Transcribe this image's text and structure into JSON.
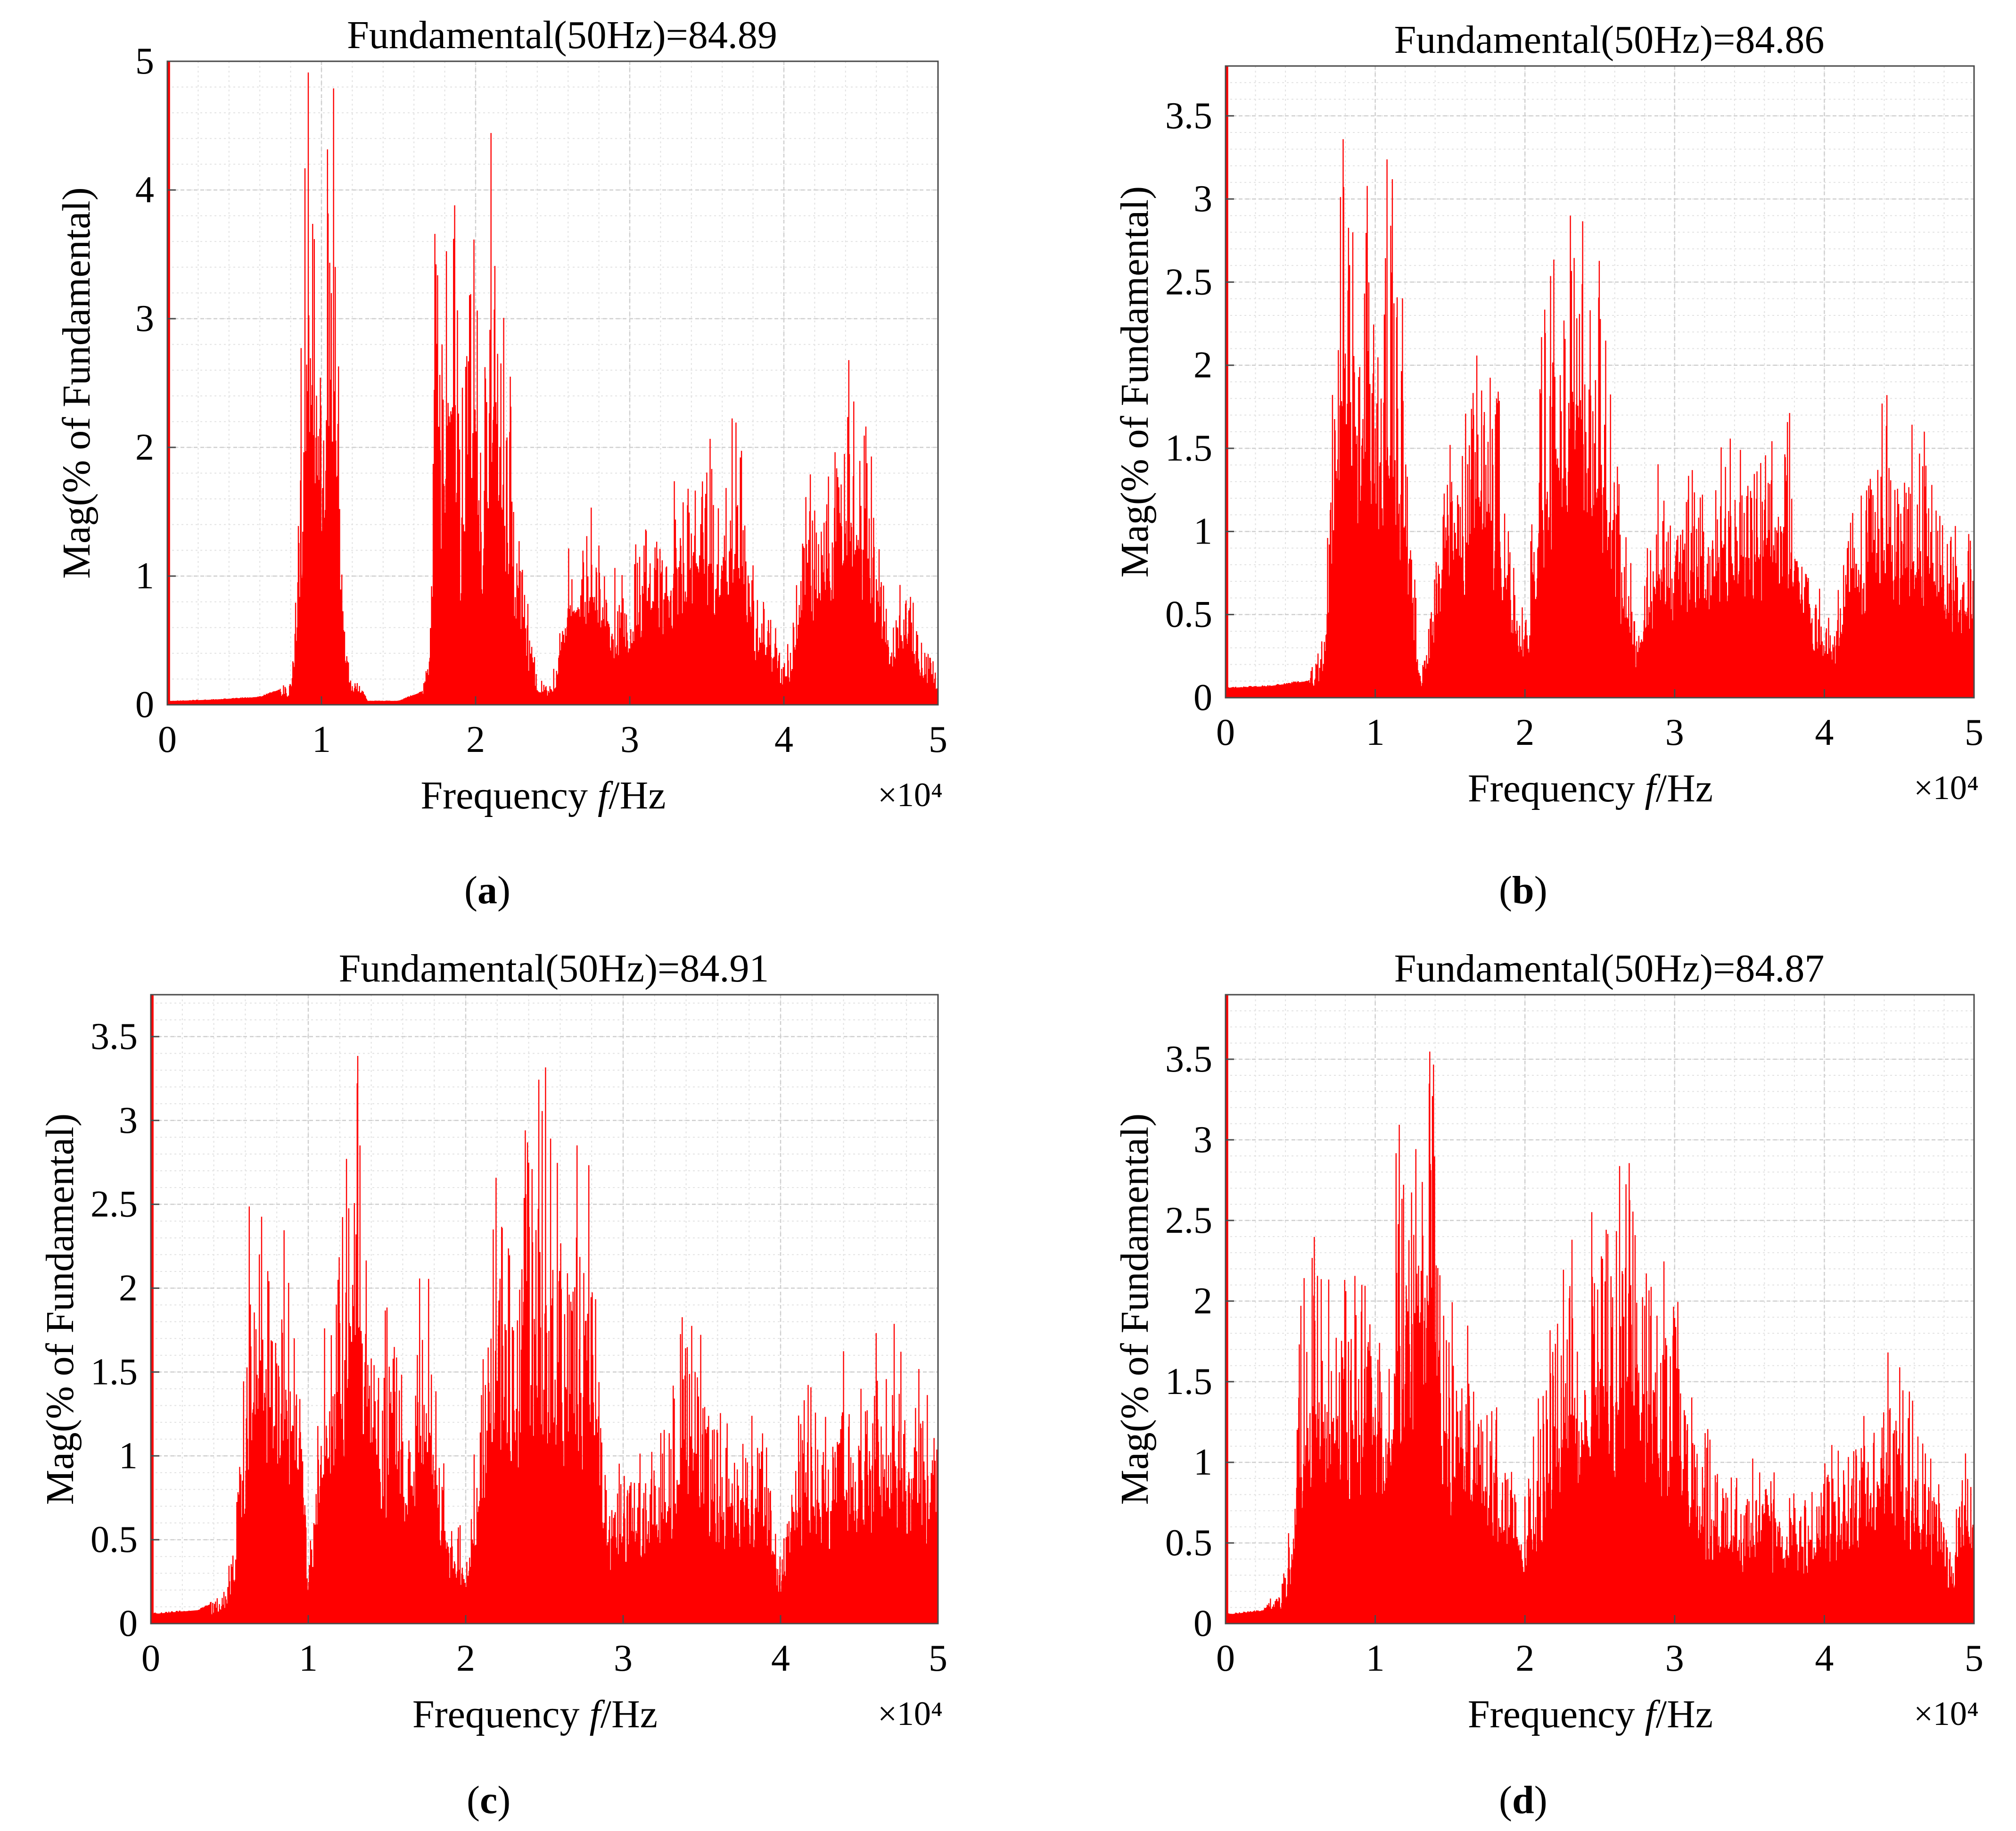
{
  "chart_data": [
    {
      "type": "area",
      "panel": "a",
      "title": "Fundamental(50Hz)=84.89",
      "xlabel": "Frequency f/Hz",
      "ylabel": "Mag(% of Fundamental)",
      "x_multiplier": "×10⁴",
      "xlim": [
        0,
        5
      ],
      "ylim": [
        0,
        5
      ],
      "xticks": [
        "0",
        "1",
        "2",
        "3",
        "4",
        "5"
      ],
      "yticks": [
        "0",
        "1",
        "2",
        "3",
        "4",
        "5"
      ],
      "grid": true,
      "color": "#ff0000",
      "series": [
        {
          "name": "spectrum",
          "x": [
            0.0,
            0.05,
            0.3,
            0.6,
            0.8,
            0.84,
            0.88,
            0.92,
            0.96,
            1.0,
            1.04,
            1.08,
            1.12,
            1.18,
            1.3,
            1.5,
            1.65,
            1.7,
            1.74,
            1.78,
            1.82,
            1.86,
            1.9,
            1.95,
            2.0,
            2.05,
            2.1,
            2.15,
            2.2,
            2.25,
            2.3,
            2.35,
            2.42,
            2.5,
            2.55,
            2.6,
            2.7,
            2.8,
            2.9,
            3.0,
            3.1,
            3.2,
            3.3,
            3.4,
            3.5,
            3.6,
            3.7,
            3.8,
            3.9,
            4.0,
            4.05,
            4.1,
            4.2,
            4.3,
            4.4,
            4.5,
            4.6,
            4.7,
            4.8,
            4.9,
            5.0
          ],
          "y": [
            0.03,
            0.03,
            0.04,
            0.06,
            0.15,
            0.9,
            2.8,
            4.5,
            4.3,
            2.2,
            3.5,
            4.1,
            1.5,
            0.3,
            0.03,
            0.03,
            0.1,
            0.5,
            3.4,
            2.2,
            3.9,
            3.7,
            1.9,
            3.4,
            3.3,
            1.7,
            3.7,
            3.2,
            2.5,
            1.6,
            1.2,
            0.5,
            0.15,
            0.2,
            0.5,
            1.2,
            1.3,
            1.2,
            0.9,
            0.8,
            1.5,
            1.1,
            1.6,
            1.7,
            1.8,
            1.7,
            1.9,
            0.9,
            0.7,
            0.3,
            0.5,
            1.2,
            1.6,
            1.8,
            2.4,
            1.9,
            1.4,
            0.6,
            0.9,
            0.5,
            0.25
          ]
        }
      ]
    },
    {
      "type": "area",
      "panel": "b",
      "title": "Fundamental(50Hz)=84.86",
      "xlabel": "Frequency f/Hz",
      "ylabel": "Mag(% of Fundamental)",
      "x_multiplier": "×10⁴",
      "xlim": [
        0,
        5
      ],
      "ylim": [
        0,
        3.8
      ],
      "xticks": [
        "0",
        "1",
        "2",
        "3",
        "4",
        "5"
      ],
      "yticks": [
        "0",
        "0.5",
        "1",
        "1.5",
        "2",
        "2.5",
        "3",
        "3.5"
      ],
      "grid": true,
      "color": "#ff0000",
      "series": [
        {
          "name": "spectrum",
          "x": [
            0.0,
            0.05,
            0.3,
            0.55,
            0.65,
            0.7,
            0.75,
            0.8,
            0.85,
            0.9,
            0.95,
            1.0,
            1.05,
            1.1,
            1.15,
            1.2,
            1.25,
            1.3,
            1.35,
            1.4,
            1.45,
            1.5,
            1.55,
            1.6,
            1.65,
            1.7,
            1.75,
            1.8,
            1.85,
            1.9,
            1.95,
            2.0,
            2.05,
            2.1,
            2.15,
            2.2,
            2.25,
            2.3,
            2.35,
            2.4,
            2.45,
            2.5,
            2.55,
            2.6,
            2.65,
            2.7,
            2.75,
            2.8,
            2.9,
            3.0,
            3.1,
            3.2,
            3.3,
            3.4,
            3.5,
            3.6,
            3.7,
            3.8,
            3.9,
            4.0,
            4.05,
            4.1,
            4.15,
            4.2,
            4.3,
            4.4,
            4.5,
            4.6,
            4.7,
            4.8,
            4.9,
            5.0
          ],
          "y": [
            0.06,
            0.06,
            0.07,
            0.1,
            0.3,
            1.2,
            2.2,
            3.4,
            2.4,
            2.3,
            2.6,
            1.8,
            2.5,
            2.9,
            2.2,
            1.8,
            0.8,
            0.15,
            0.3,
            0.8,
            1.3,
            1.9,
            1.8,
            1.4,
            1.8,
            2.1,
            1.7,
            1.6,
            1.4,
            0.9,
            0.5,
            0.4,
            0.9,
            1.7,
            2.0,
            2.3,
            2.2,
            2.6,
            2.7,
            2.4,
            2.3,
            2.1,
            1.7,
            1.3,
            0.9,
            0.7,
            0.4,
            0.7,
            1.2,
            1.0,
            1.1,
            1.3,
            1.4,
            1.2,
            1.3,
            1.5,
            1.6,
            1.3,
            0.6,
            0.5,
            0.3,
            0.6,
            1.0,
            1.2,
            1.3,
            1.6,
            1.4,
            1.3,
            1.3,
            1.1,
            0.9,
            0.8
          ]
        }
      ]
    },
    {
      "type": "area",
      "panel": "c",
      "title": "Fundamental(50Hz)=84.91",
      "xlabel": "Frequency f/Hz",
      "ylabel": "Mag(% of Fundamental)",
      "x_multiplier": "×10⁴",
      "xlim": [
        0,
        5
      ],
      "ylim": [
        0,
        3.75
      ],
      "xticks": [
        "0",
        "1",
        "2",
        "3",
        "4",
        "5"
      ],
      "yticks": [
        "0",
        "0.5",
        "1",
        "1.5",
        "2",
        "2.5",
        "3",
        "3.5"
      ],
      "grid": true,
      "color": "#ff0000",
      "series": [
        {
          "name": "spectrum",
          "x": [
            0.0,
            0.05,
            0.3,
            0.45,
            0.52,
            0.58,
            0.62,
            0.66,
            0.7,
            0.74,
            0.78,
            0.82,
            0.86,
            0.9,
            0.95,
            1.0,
            1.05,
            1.1,
            1.15,
            1.2,
            1.25,
            1.3,
            1.35,
            1.4,
            1.45,
            1.5,
            1.55,
            1.6,
            1.65,
            1.7,
            1.75,
            1.8,
            1.85,
            1.9,
            1.95,
            2.0,
            2.05,
            2.1,
            2.15,
            2.2,
            2.25,
            2.3,
            2.35,
            2.4,
            2.45,
            2.5,
            2.55,
            2.6,
            2.65,
            2.7,
            2.75,
            2.8,
            2.85,
            2.9,
            3.0,
            3.1,
            3.2,
            3.3,
            3.4,
            3.5,
            3.6,
            3.7,
            3.8,
            3.9,
            4.0,
            4.1,
            4.2,
            4.3,
            4.4,
            4.5,
            4.6,
            4.7,
            4.8,
            4.9,
            5.0
          ],
          "y": [
            0.06,
            0.06,
            0.08,
            0.15,
            0.4,
            1.2,
            2.1,
            2.0,
            2.5,
            2.2,
            1.7,
            1.9,
            2.0,
            2.1,
            1.2,
            0.4,
            0.8,
            1.6,
            2.0,
            2.6,
            2.4,
            3.4,
            2.7,
            1.9,
            1.4,
            1.6,
            1.7,
            1.2,
            0.9,
            1.6,
            2.1,
            1.4,
            0.9,
            0.6,
            0.5,
            0.4,
            0.8,
            1.3,
            1.8,
            2.2,
            2.0,
            1.9,
            2.0,
            2.7,
            2.6,
            2.8,
            2.4,
            2.2,
            2.1,
            2.6,
            2.2,
            2.5,
            1.4,
            0.8,
            0.8,
            0.9,
            0.9,
            1.1,
            1.7,
            1.4,
            1.2,
            1.0,
            1.2,
            1.0,
            0.4,
            1.1,
            1.2,
            1.0,
            1.3,
            1.2,
            1.4,
            1.5,
            1.3,
            1.3,
            0.9
          ]
        }
      ]
    },
    {
      "type": "area",
      "panel": "d",
      "title": "Fundamental(50Hz)=84.87",
      "xlabel": "Frequency f/Hz",
      "ylabel": "Mag(% of Fundamental)",
      "x_multiplier": "×10⁴",
      "xlim": [
        0,
        5
      ],
      "ylim": [
        0,
        3.9
      ],
      "xticks": [
        "0",
        "1",
        "2",
        "3",
        "4",
        "5"
      ],
      "yticks": [
        "0",
        "0.5",
        "1",
        "1.5",
        "2",
        "2.5",
        "3",
        "3.5"
      ],
      "grid": true,
      "color": "#ff0000",
      "series": [
        {
          "name": "spectrum",
          "x": [
            0.0,
            0.05,
            0.25,
            0.38,
            0.44,
            0.48,
            0.52,
            0.56,
            0.6,
            0.65,
            0.7,
            0.75,
            0.8,
            0.85,
            0.9,
            0.95,
            1.0,
            1.05,
            1.1,
            1.15,
            1.2,
            1.25,
            1.3,
            1.35,
            1.4,
            1.45,
            1.5,
            1.55,
            1.6,
            1.65,
            1.7,
            1.75,
            1.8,
            1.85,
            1.9,
            1.95,
            2.0,
            2.05,
            2.1,
            2.15,
            2.2,
            2.25,
            2.3,
            2.35,
            2.4,
            2.45,
            2.5,
            2.55,
            2.6,
            2.65,
            2.7,
            2.75,
            2.8,
            2.85,
            2.9,
            2.95,
            3.0,
            3.05,
            3.1,
            3.2,
            3.3,
            3.4,
            3.5,
            3.6,
            3.7,
            3.8,
            3.9,
            4.0,
            4.1,
            4.2,
            4.3,
            4.4,
            4.5,
            4.6,
            4.7,
            4.8,
            4.85,
            4.9,
            5.0
          ],
          "y": [
            0.06,
            0.06,
            0.08,
            0.2,
            0.6,
            1.3,
            1.9,
            2.0,
            2.1,
            2.0,
            1.8,
            1.9,
            1.7,
            1.9,
            2.0,
            1.9,
            2.1,
            1.7,
            1.8,
            2.6,
            3.1,
            2.7,
            2.0,
            3.5,
            2.9,
            2.1,
            1.7,
            1.5,
            1.7,
            1.4,
            1.3,
            1.2,
            1.1,
            1.0,
            0.9,
            0.8,
            0.8,
            0.9,
            1.2,
            1.4,
            1.8,
            1.7,
            2.2,
            2.0,
            2.1,
            2.3,
            2.4,
            2.1,
            2.2,
            2.4,
            2.3,
            2.4,
            2.2,
            2.1,
            2.0,
            1.9,
            2.2,
            1.4,
            1.2,
            1.0,
            0.9,
            0.8,
            0.8,
            0.9,
            0.7,
            0.7,
            0.8,
            0.9,
            1.0,
            1.1,
            1.2,
            1.4,
            1.3,
            1.1,
            0.9,
            0.6,
            0.4,
            0.9,
            1.0
          ]
        }
      ]
    }
  ],
  "captions": [
    "(a)",
    "(b)",
    "(c)",
    "(d)"
  ]
}
